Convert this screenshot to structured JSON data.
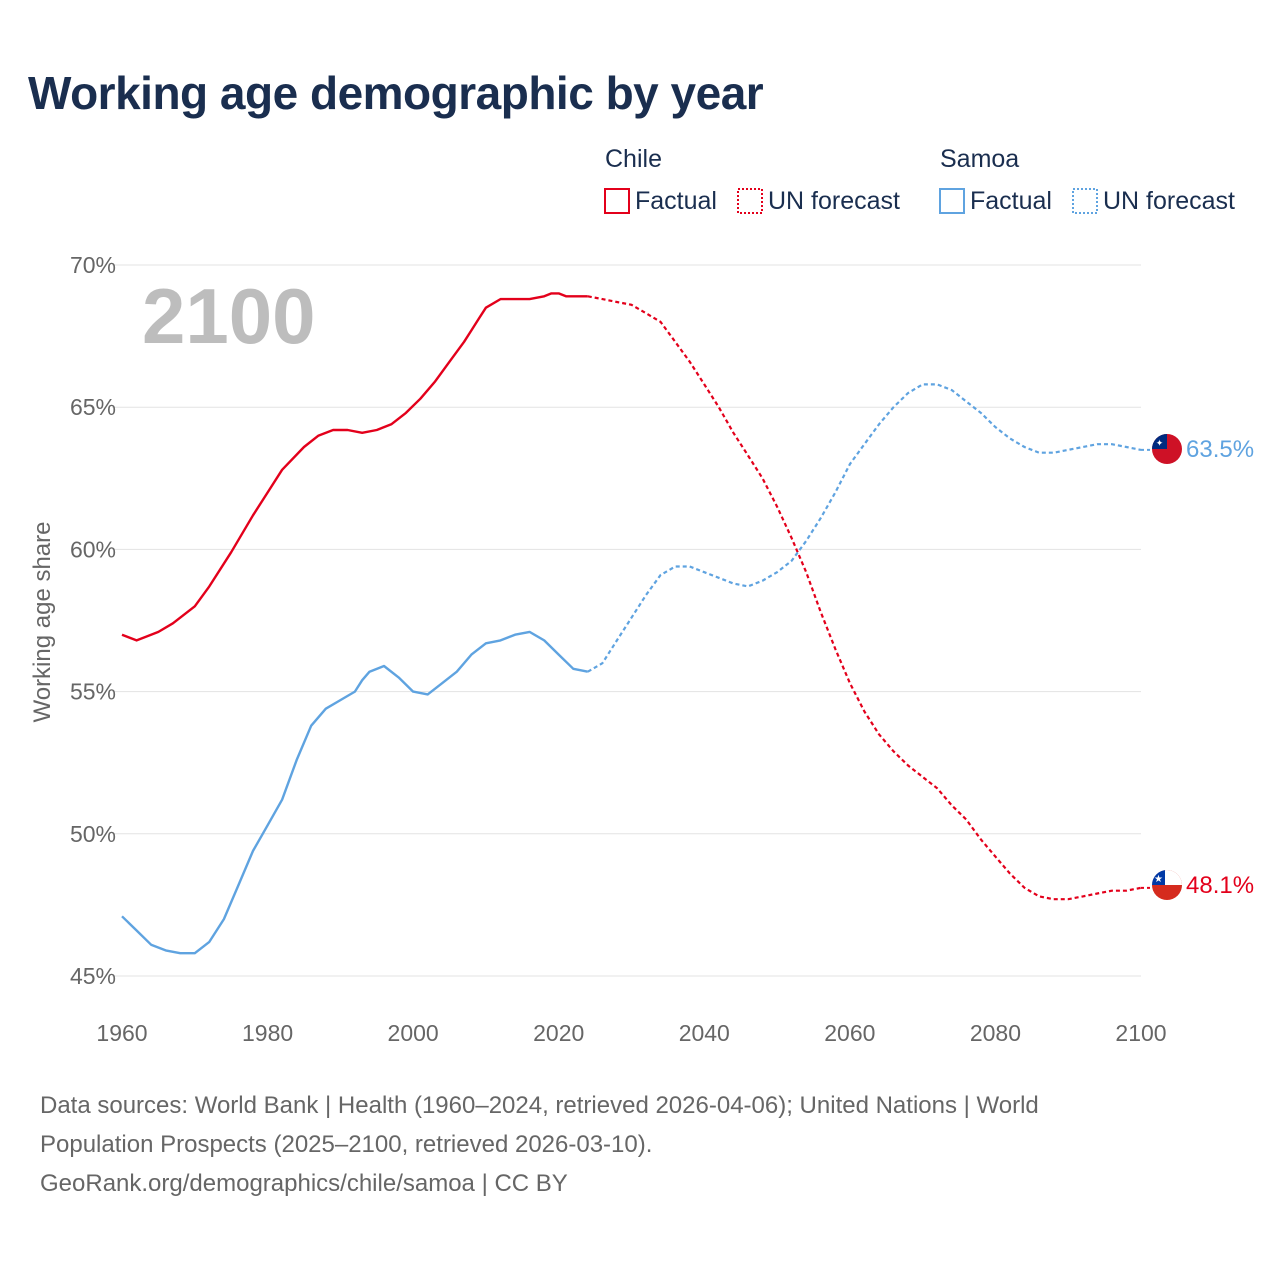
{
  "chart_data": {
    "type": "line",
    "title": "Working age demographic by year",
    "ylabel": "Working age share",
    "xlabel": "",
    "xlim": [
      1960,
      2100
    ],
    "ylim": [
      45,
      70
    ],
    "x_ticks": [
      "1960",
      "1980",
      "2000",
      "2020",
      "2040",
      "2060",
      "2080",
      "2100"
    ],
    "y_ticks": [
      "45%",
      "50%",
      "55%",
      "60%",
      "65%",
      "70%"
    ],
    "year_label": "2100",
    "legend": {
      "groups": [
        {
          "name": "Chile",
          "color": "#e3001b",
          "factual": "Factual",
          "forecast": "UN forecast"
        },
        {
          "name": "Samoa",
          "color": "#5fa3e0",
          "factual": "Factual",
          "forecast": "UN forecast"
        }
      ]
    },
    "series": [
      {
        "name": "Chile",
        "color": "#e3001b",
        "end_label": "48.1%",
        "factual": [
          [
            1960,
            57.0
          ],
          [
            1962,
            56.8
          ],
          [
            1965,
            57.1
          ],
          [
            1967,
            57.4
          ],
          [
            1970,
            58.0
          ],
          [
            1972,
            58.7
          ],
          [
            1975,
            59.9
          ],
          [
            1978,
            61.2
          ],
          [
            1980,
            62.0
          ],
          [
            1982,
            62.8
          ],
          [
            1985,
            63.6
          ],
          [
            1987,
            64.0
          ],
          [
            1989,
            64.2
          ],
          [
            1991,
            64.2
          ],
          [
            1993,
            64.1
          ],
          [
            1995,
            64.2
          ],
          [
            1997,
            64.4
          ],
          [
            1999,
            64.8
          ],
          [
            2001,
            65.3
          ],
          [
            2003,
            65.9
          ],
          [
            2005,
            66.6
          ],
          [
            2007,
            67.3
          ],
          [
            2008,
            67.7
          ],
          [
            2009,
            68.1
          ],
          [
            2010,
            68.5
          ],
          [
            2012,
            68.8
          ],
          [
            2014,
            68.8
          ],
          [
            2016,
            68.8
          ],
          [
            2018,
            68.9
          ],
          [
            2019,
            69.0
          ],
          [
            2020,
            69.0
          ],
          [
            2021,
            68.9
          ],
          [
            2022,
            68.9
          ],
          [
            2024,
            68.9
          ]
        ],
        "forecast": [
          [
            2024,
            68.9
          ],
          [
            2026,
            68.8
          ],
          [
            2028,
            68.7
          ],
          [
            2030,
            68.6
          ],
          [
            2032,
            68.3
          ],
          [
            2034,
            68.0
          ],
          [
            2036,
            67.3
          ],
          [
            2038,
            66.6
          ],
          [
            2040,
            65.8
          ],
          [
            2042,
            65.0
          ],
          [
            2044,
            64.1
          ],
          [
            2046,
            63.3
          ],
          [
            2048,
            62.5
          ],
          [
            2050,
            61.5
          ],
          [
            2052,
            60.4
          ],
          [
            2054,
            59.2
          ],
          [
            2056,
            57.8
          ],
          [
            2058,
            56.5
          ],
          [
            2060,
            55.3
          ],
          [
            2062,
            54.3
          ],
          [
            2064,
            53.5
          ],
          [
            2066,
            52.9
          ],
          [
            2068,
            52.4
          ],
          [
            2070,
            52.0
          ],
          [
            2072,
            51.6
          ],
          [
            2074,
            51.0
          ],
          [
            2076,
            50.5
          ],
          [
            2078,
            49.8
          ],
          [
            2080,
            49.2
          ],
          [
            2082,
            48.6
          ],
          [
            2084,
            48.1
          ],
          [
            2086,
            47.8
          ],
          [
            2088,
            47.7
          ],
          [
            2090,
            47.7
          ],
          [
            2092,
            47.8
          ],
          [
            2094,
            47.9
          ],
          [
            2096,
            48.0
          ],
          [
            2098,
            48.0
          ],
          [
            2100,
            48.1
          ]
        ]
      },
      {
        "name": "Samoa",
        "color": "#5fa3e0",
        "end_label": "63.5%",
        "factual": [
          [
            1960,
            47.1
          ],
          [
            1962,
            46.6
          ],
          [
            1964,
            46.1
          ],
          [
            1966,
            45.9
          ],
          [
            1968,
            45.8
          ],
          [
            1970,
            45.8
          ],
          [
            1972,
            46.2
          ],
          [
            1974,
            47.0
          ],
          [
            1976,
            48.2
          ],
          [
            1978,
            49.4
          ],
          [
            1980,
            50.3
          ],
          [
            1982,
            51.2
          ],
          [
            1984,
            52.6
          ],
          [
            1986,
            53.8
          ],
          [
            1988,
            54.4
          ],
          [
            1990,
            54.7
          ],
          [
            1992,
            55.0
          ],
          [
            1993,
            55.4
          ],
          [
            1994,
            55.7
          ],
          [
            1996,
            55.9
          ],
          [
            1998,
            55.5
          ],
          [
            2000,
            55.0
          ],
          [
            2002,
            54.9
          ],
          [
            2004,
            55.3
          ],
          [
            2006,
            55.7
          ],
          [
            2008,
            56.3
          ],
          [
            2010,
            56.7
          ],
          [
            2012,
            56.8
          ],
          [
            2014,
            57.0
          ],
          [
            2016,
            57.1
          ],
          [
            2018,
            56.8
          ],
          [
            2020,
            56.3
          ],
          [
            2022,
            55.8
          ],
          [
            2024,
            55.7
          ]
        ],
        "forecast": [
          [
            2024,
            55.7
          ],
          [
            2026,
            56.0
          ],
          [
            2028,
            56.8
          ],
          [
            2030,
            57.6
          ],
          [
            2032,
            58.4
          ],
          [
            2034,
            59.1
          ],
          [
            2036,
            59.4
          ],
          [
            2038,
            59.4
          ],
          [
            2040,
            59.2
          ],
          [
            2042,
            59.0
          ],
          [
            2044,
            58.8
          ],
          [
            2046,
            58.7
          ],
          [
            2048,
            58.9
          ],
          [
            2050,
            59.2
          ],
          [
            2052,
            59.6
          ],
          [
            2054,
            60.3
          ],
          [
            2056,
            61.1
          ],
          [
            2058,
            62.0
          ],
          [
            2060,
            63.0
          ],
          [
            2062,
            63.7
          ],
          [
            2064,
            64.4
          ],
          [
            2066,
            65.0
          ],
          [
            2068,
            65.5
          ],
          [
            2070,
            65.8
          ],
          [
            2072,
            65.8
          ],
          [
            2074,
            65.6
          ],
          [
            2076,
            65.2
          ],
          [
            2078,
            64.8
          ],
          [
            2080,
            64.3
          ],
          [
            2082,
            63.9
          ],
          [
            2084,
            63.6
          ],
          [
            2086,
            63.4
          ],
          [
            2088,
            63.4
          ],
          [
            2090,
            63.5
          ],
          [
            2092,
            63.6
          ],
          [
            2094,
            63.7
          ],
          [
            2096,
            63.7
          ],
          [
            2098,
            63.6
          ],
          [
            2100,
            63.5
          ]
        ]
      }
    ]
  },
  "sources": {
    "line1": "Data sources: World Bank | Health (1960–2024, retrieved 2026-04-06); United Nations | World",
    "line2": "Population Prospects (2025–2100, retrieved 2026-03-10).",
    "line3": "GeoRank.org/demographics/chile/samoa | CC BY"
  }
}
